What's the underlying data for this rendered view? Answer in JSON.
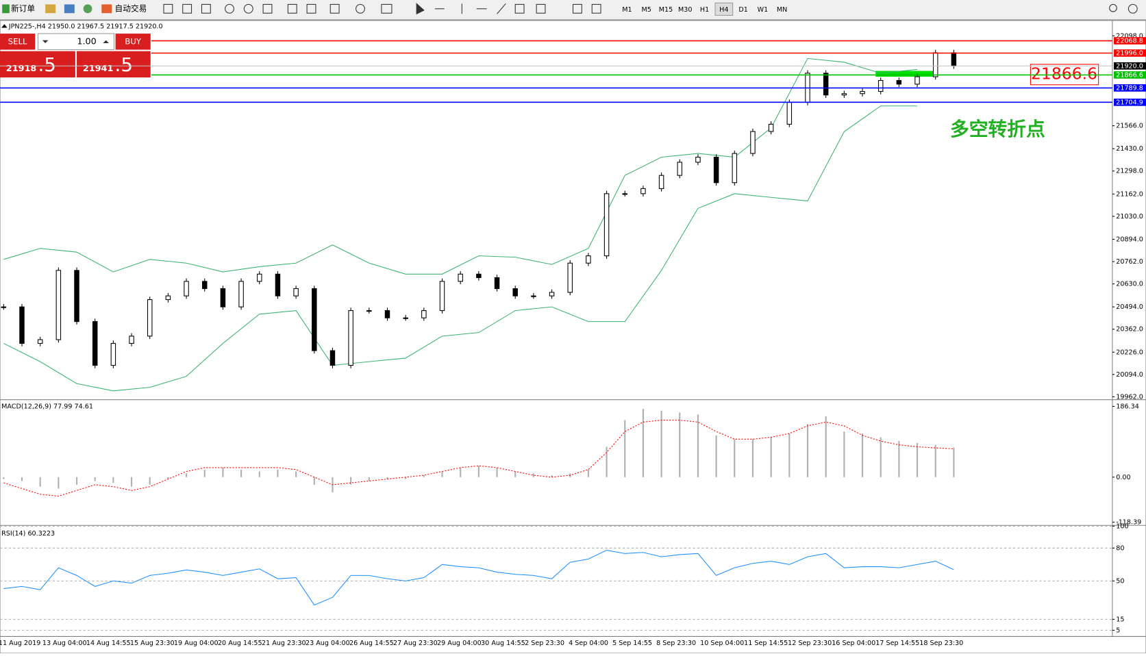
{
  "toolbar": {
    "new_order": "新订单",
    "auto_trading": "自动交易",
    "timeframes": [
      "M1",
      "M5",
      "M15",
      "M30",
      "H1",
      "H4",
      "D1",
      "W1",
      "MN"
    ],
    "active_timeframe": "H4"
  },
  "trade_panel": {
    "sell": "SELL",
    "buy": "BUY",
    "lots": "1.00",
    "sell_price": "21918",
    "sell_fraction": ".5",
    "buy_price": "21941",
    "buy_fraction": ".5"
  },
  "time_axis": {
    "labels": [
      "11 Aug 2019",
      "13 Aug 04:00",
      "14 Aug 14:55",
      "15 Aug 23:30",
      "19 Aug 04:00",
      "20 Aug 14:55",
      "21 Aug 23:30",
      "23 Aug 04:00",
      "26 Aug 14:55",
      "27 Aug 23:30",
      "29 Aug 04:00",
      "30 Aug 14:55",
      "2 Sep 23:30",
      "4 Sep 04:00",
      "5 Sep 14:55",
      "8 Sep 23:30",
      "10 Sep 04:00",
      "11 Sep 14:55",
      "12 Sep 23:30",
      "16 Sep 04:00",
      "17 Sep 14:55",
      "18 Sep 23:30"
    ]
  },
  "chart_data": [
    {
      "type": "candlestick",
      "title": "JPN225-,H4  21950.0 21967.5 21917.5 21920.0",
      "annotation": "多空转折点",
      "close": [
        20494,
        20278,
        20300,
        20710,
        20407,
        20148,
        20278,
        20321,
        20537,
        20559,
        20645,
        20602,
        20494,
        20645,
        20688,
        20559,
        20602,
        20235,
        20148,
        20472,
        20472,
        20429,
        20429,
        20472,
        20645,
        20688,
        20667,
        20602,
        20559,
        20559,
        20580,
        20753,
        20796,
        21164,
        21164,
        21194,
        21272,
        21350,
        21380,
        21229,
        21402,
        21532,
        21575,
        21704,
        21877,
        21748,
        21756,
        21769,
        21834,
        21812,
        21856,
        21998,
        21920
      ],
      "bands": [
        {
          "name": "upper",
          "color": "#3cb371",
          "values": [
            20775,
            20840,
            20818,
            20701,
            20775,
            20753,
            20701,
            20732,
            20753,
            20861,
            20753,
            20688,
            20688,
            20796,
            20788,
            20745,
            20840,
            21272,
            21380,
            21402,
            21380,
            21553,
            21964,
            21942,
            21877,
            21899
          ]
        },
        {
          "name": "lower",
          "color": "#3cb371",
          "values": [
            20278,
            20170,
            20040,
            19997,
            20018,
            20083,
            20278,
            20451,
            20472,
            20148,
            20170,
            20191,
            20321,
            20342,
            20472,
            20494,
            20407,
            20407,
            20710,
            21077,
            21164,
            21142,
            21121,
            21531,
            21683,
            21683
          ]
        }
      ],
      "levels": [
        {
          "value": 22068.8,
          "label": "22068.8",
          "color": "#ff0000"
        },
        {
          "value": 21996.0,
          "label": "21996.0",
          "color": "#ff0000"
        },
        {
          "value": 21866.6,
          "label": "21866.6",
          "color": "#00c000"
        },
        {
          "value": 21789.8,
          "label": "21789.8",
          "color": "#0000ff"
        },
        {
          "value": 21704.9,
          "label": "21704.9",
          "color": "#0000ff"
        }
      ],
      "current_price": {
        "value": 21920.0,
        "label": "21920.0"
      },
      "ylim": [
        19949,
        22189
      ],
      "yticks": [
        {
          "value": 22098.0,
          "label": "22098.0"
        },
        {
          "value": 21566.0,
          "label": "21566.0"
        },
        {
          "value": 21430.0,
          "label": "21430.0"
        },
        {
          "value": 21298.0,
          "label": "21298.0"
        },
        {
          "value": 21162.0,
          "label": "21162.0"
        },
        {
          "value": 21030.0,
          "label": "21030.0"
        },
        {
          "value": 20894.0,
          "label": "20894.0"
        },
        {
          "value": 20762.0,
          "label": "20762.0"
        },
        {
          "value": 20630.0,
          "label": "20630.0"
        },
        {
          "value": 20494.0,
          "label": "20494.0"
        },
        {
          "value": 20362.0,
          "label": "20362.0"
        },
        {
          "value": 20226.0,
          "label": "20226.0"
        },
        {
          "value": 20094.0,
          "label": "20094.0"
        },
        {
          "value": 19962.0,
          "label": "19962.0"
        }
      ]
    },
    {
      "type": "macd",
      "title": "MACD(12,26,9) 77.99 74.61",
      "series": [
        {
          "name": "main",
          "color": "#b0b0b0",
          "values": [
            -5,
            -10,
            -25,
            -30,
            -20,
            -10,
            -15,
            -25,
            -20,
            -5,
            10,
            20,
            25,
            20,
            15,
            20,
            15,
            -20,
            -40,
            -20,
            -10,
            -5,
            -5,
            5,
            15,
            25,
            30,
            25,
            15,
            10,
            5,
            10,
            20,
            80,
            150,
            180,
            175,
            170,
            165,
            110,
            100,
            100,
            105,
            115,
            140,
            160,
            120,
            115,
            105,
            95,
            90,
            85,
            77.99
          ]
        },
        {
          "name": "signal",
          "color": "#ff0000",
          "values": [
            -15,
            -30,
            -45,
            -50,
            -35,
            -20,
            -25,
            -35,
            -25,
            -5,
            15,
            25,
            25,
            25,
            25,
            25,
            20,
            0,
            -20,
            -15,
            -10,
            -5,
            0,
            5,
            15,
            25,
            30,
            25,
            15,
            5,
            0,
            5,
            20,
            65,
            120,
            145,
            150,
            150,
            145,
            120,
            100,
            100,
            105,
            115,
            135,
            145,
            135,
            110,
            95,
            85,
            80,
            77,
            74.61
          ]
        }
      ],
      "ylim": [
        -125,
        200
      ],
      "yticks": [
        186.34,
        {
          "value": 0,
          "label": "0.00"
        },
        -118.39
      ]
    },
    {
      "type": "rsi",
      "title": "RSI(14) 60.3223",
      "color": "#1e90ff",
      "values": [
        43,
        45,
        42,
        62,
        55,
        45,
        50,
        48,
        55,
        57,
        60,
        58,
        55,
        58,
        61,
        52,
        53,
        28,
        35,
        55,
        55,
        52,
        50,
        53,
        65,
        63,
        62,
        58,
        56,
        55,
        52,
        67,
        70,
        78,
        75,
        76,
        72,
        74,
        75,
        55,
        62,
        66,
        68,
        65,
        72,
        75,
        62,
        63,
        63,
        62,
        65,
        68,
        60.3223
      ],
      "ylim": [
        0,
        100
      ],
      "yticks": [
        100,
        80,
        50,
        15,
        5
      ]
    }
  ]
}
